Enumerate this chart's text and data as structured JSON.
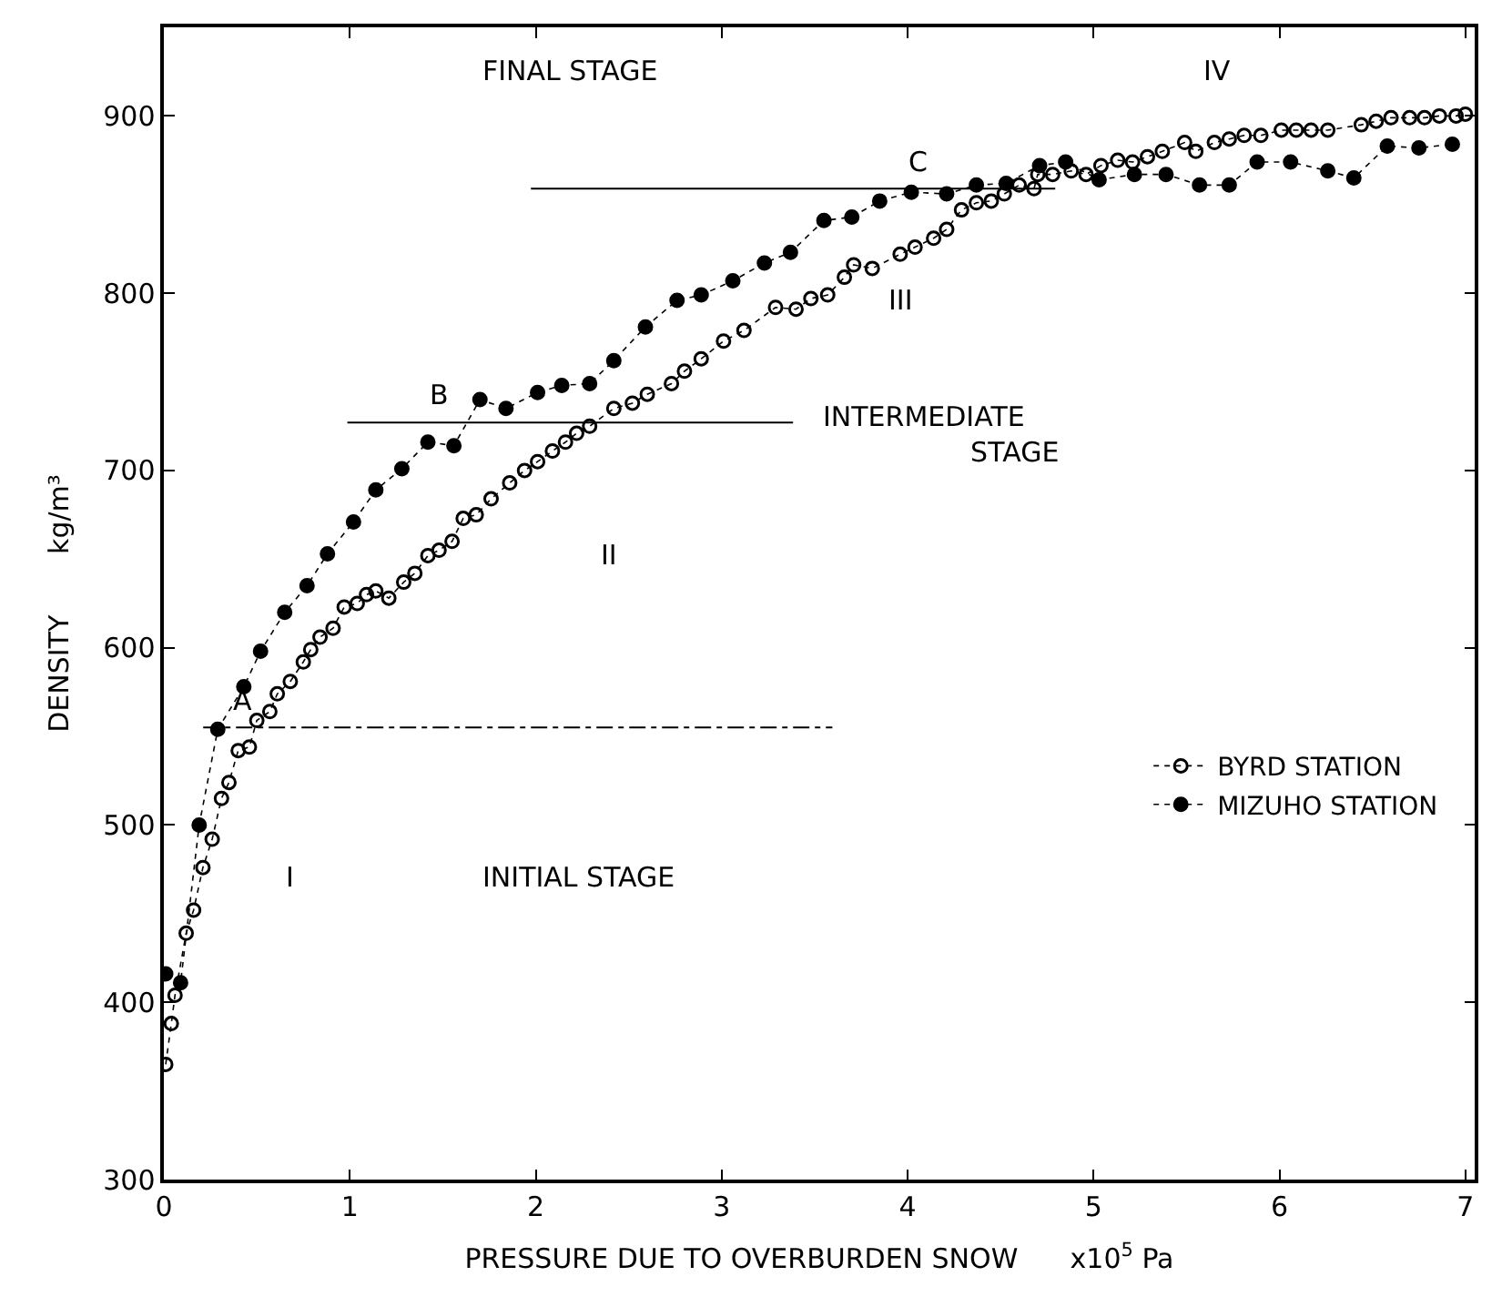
{
  "chart_data": {
    "type": "line",
    "xlabel": "PRESSURE DUE TO OVERBURDEN SNOW      x10$^{5}$ Pa",
    "ylabel": "DENSITY       kg/m³",
    "xlim": [
      0,
      7.05
    ],
    "ylim": [
      300,
      950
    ],
    "xticks": [
      0,
      1,
      2,
      3,
      4,
      5,
      6,
      7
    ],
    "yticks": [
      300,
      400,
      500,
      600,
      700,
      800,
      900
    ],
    "legend": "bottom right",
    "line_style": "dotted",
    "series": [
      {
        "name": "BYRD STATION",
        "color": "#000000",
        "marker": "circle-open",
        "x": [
          0.01,
          0.04,
          0.06,
          0.12,
          0.16,
          0.21,
          0.26,
          0.31,
          0.35,
          0.4,
          0.46,
          0.5,
          0.57,
          0.61,
          0.68,
          0.75,
          0.79,
          0.84,
          0.91,
          0.97,
          1.04,
          1.09,
          1.14,
          1.21,
          1.29,
          1.35,
          1.42,
          1.48,
          1.55,
          1.61,
          1.68,
          1.76,
          1.86,
          1.94,
          2.01,
          2.09,
          2.16,
          2.22,
          2.29,
          2.42,
          2.52,
          2.6,
          2.73,
          2.8,
          2.89,
          3.01,
          3.12,
          3.29,
          3.4,
          3.48,
          3.57,
          3.66,
          3.71,
          3.81,
          3.96,
          4.04,
          4.14,
          4.21,
          4.29,
          4.37,
          4.45,
          4.52,
          4.6,
          4.68,
          4.7,
          4.78,
          4.88,
          4.96,
          5.04,
          5.13,
          5.21,
          5.29,
          5.37,
          5.49,
          5.55,
          5.65,
          5.73,
          5.81,
          5.9,
          6.01,
          6.09,
          6.17,
          6.26,
          6.44,
          6.52,
          6.6,
          6.7,
          6.78,
          6.86,
          6.95,
          7.0
        ],
        "values": [
          365,
          388,
          404,
          439,
          452,
          476,
          492,
          515,
          524,
          542,
          544,
          559,
          564,
          574,
          581,
          592,
          599,
          606,
          611,
          623,
          625,
          630,
          632,
          628,
          637,
          642,
          652,
          655,
          660,
          673,
          675,
          684,
          693,
          700,
          705,
          711,
          716,
          721,
          725,
          735,
          738,
          743,
          749,
          756,
          763,
          773,
          779,
          792,
          791,
          797,
          799,
          809,
          816,
          814,
          822,
          826,
          831,
          836,
          847,
          851,
          852,
          856,
          861,
          859,
          867,
          867,
          869,
          867,
          872,
          875,
          874,
          877,
          880,
          885,
          880,
          885,
          887,
          889,
          889,
          892,
          892,
          892,
          892,
          895,
          897,
          899,
          899,
          899,
          900,
          900,
          901
        ]
      },
      {
        "name": "MIZUHO STATION",
        "color": "#000000",
        "marker": "circle",
        "x": [
          0.01,
          0.09,
          0.19,
          0.29,
          0.43,
          0.52,
          0.65,
          0.77,
          0.88,
          1.02,
          1.14,
          1.28,
          1.42,
          1.56,
          1.7,
          1.84,
          2.01,
          2.14,
          2.29,
          2.42,
          2.59,
          2.76,
          2.89,
          3.06,
          3.23,
          3.37,
          3.55,
          3.7,
          3.85,
          4.02,
          4.21,
          4.37,
          4.53,
          4.71,
          4.85,
          5.03,
          5.22,
          5.39,
          5.57,
          5.73,
          5.88,
          6.06,
          6.26,
          6.4,
          6.58,
          6.75,
          6.93
        ],
        "values": [
          416,
          411,
          500,
          554,
          578,
          598,
          620,
          635,
          653,
          671,
          689,
          701,
          716,
          714,
          740,
          735,
          744,
          748,
          749,
          762,
          781,
          796,
          799,
          807,
          817,
          823,
          841,
          843,
          852,
          857,
          856,
          861,
          862,
          872,
          874,
          864,
          867,
          867,
          861,
          861,
          874,
          874,
          869,
          865,
          883,
          882,
          884
        ]
      }
    ],
    "ref_lines": [
      {
        "axis": "y",
        "value": 555,
        "label": "A",
        "line_style": "dashdot"
      },
      {
        "axis": "y",
        "value": 727,
        "label": "B",
        "line_style": "solid"
      },
      {
        "axis": "y",
        "value": 859,
        "label": "C",
        "line_style": "solid"
      }
    ],
    "annotations": [
      "FINAL STAGE",
      "INTERMEDIATE\n                 STAGE",
      "INITIAL STAGE",
      "I",
      "II",
      "III",
      "IV"
    ]
  }
}
